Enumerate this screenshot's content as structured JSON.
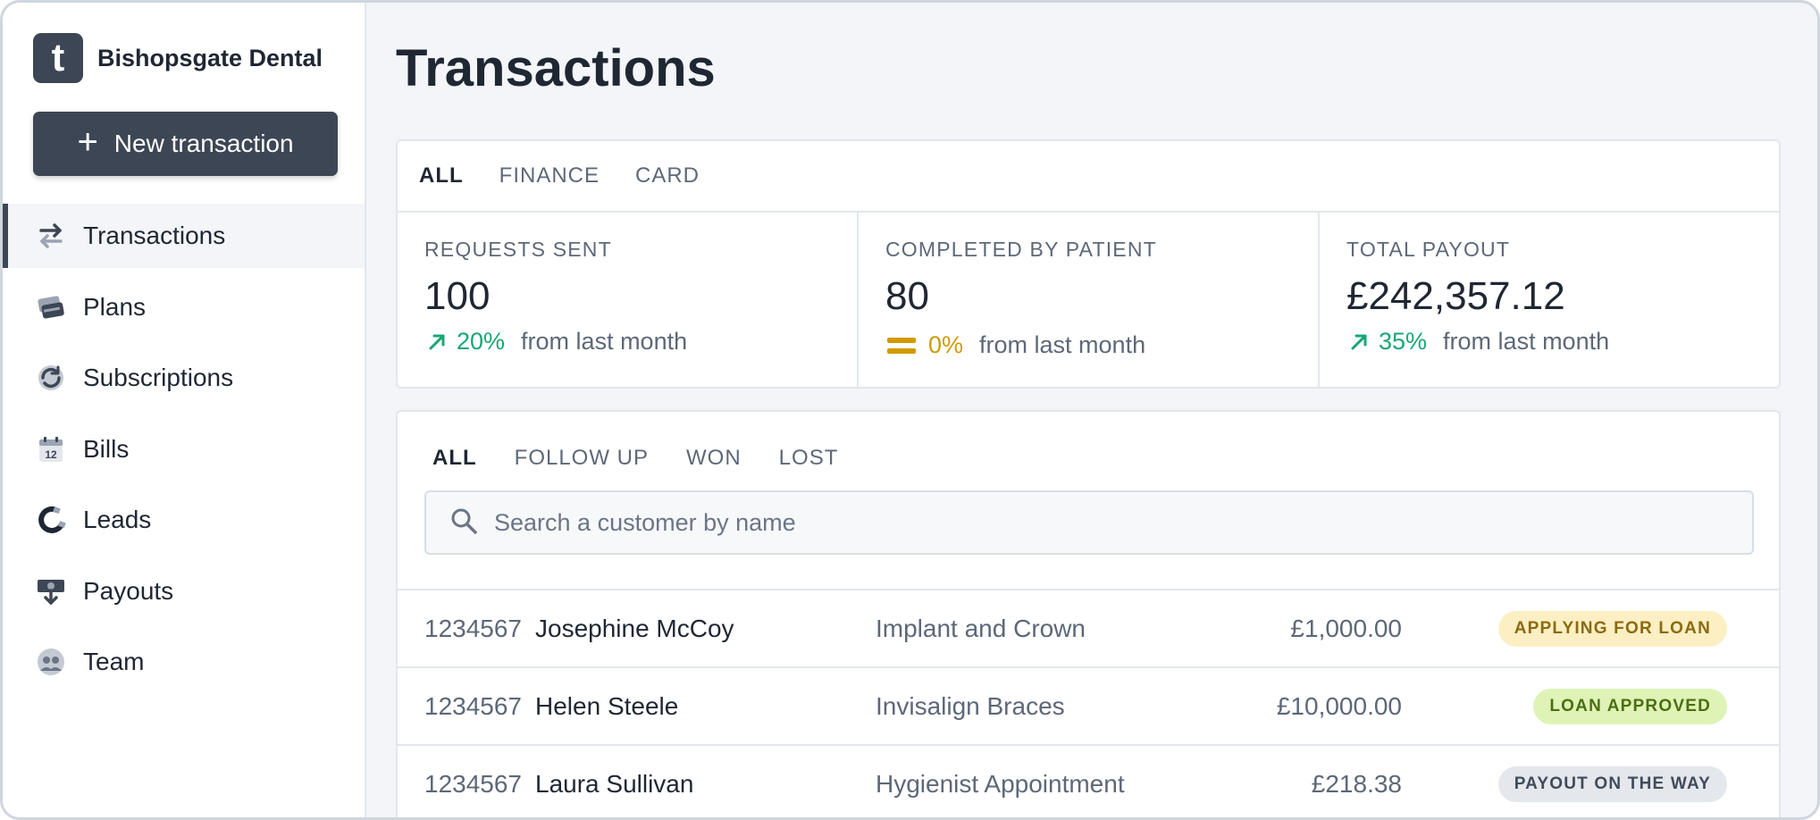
{
  "brand": {
    "logo_letter": "t",
    "name": "Bishopsgate Dental"
  },
  "sidebar": {
    "new_button": {
      "icon": "plus-icon",
      "label": "New transaction"
    },
    "items": [
      {
        "label": "Transactions",
        "icon": "arrows-exchange-icon",
        "active": true
      },
      {
        "label": "Plans",
        "icon": "cards-stack-icon",
        "active": false
      },
      {
        "label": "Subscriptions",
        "icon": "refresh-cycle-icon",
        "active": false
      },
      {
        "label": "Bills",
        "icon": "calendar-icon",
        "active": false
      },
      {
        "label": "Leads",
        "icon": "magnet-icon",
        "active": false
      },
      {
        "label": "Payouts",
        "icon": "money-download-icon",
        "active": false
      },
      {
        "label": "Team",
        "icon": "team-icon",
        "active": false
      }
    ],
    "calendar_day": "12"
  },
  "main": {
    "title": "Transactions",
    "stat_tabs": [
      "ALL",
      "FINANCE",
      "CARD"
    ],
    "stats": [
      {
        "label": "REQUESTS SENT",
        "value": "100",
        "change": "20%",
        "trend": "up",
        "suffix": "from last month"
      },
      {
        "label": "COMPLETED BY PATIENT",
        "value": "80",
        "change": "0%",
        "trend": "flat",
        "suffix": "from last month"
      },
      {
        "label": "TOTAL PAYOUT",
        "value": "£242,357.12",
        "change": "35%",
        "trend": "up",
        "suffix": "from last month"
      }
    ],
    "filters": [
      "ALL",
      "FOLLOW UP",
      "WON",
      "LOST"
    ],
    "search": {
      "placeholder": "Search a customer by name",
      "value": ""
    },
    "rows": [
      {
        "id": "1234567",
        "name": "Josephine McCoy",
        "treatment": "Implant and Crown",
        "amount": "£1,000.00",
        "status": "APPLYING FOR LOAN",
        "status_bg": "#fdefc4",
        "status_fg": "#8a6a10"
      },
      {
        "id": "1234567",
        "name": "Helen Steele",
        "treatment": "Invisalign Braces",
        "amount": "£10,000.00",
        "status": "LOAN APPROVED",
        "status_bg": "#dff3b6",
        "status_fg": "#4c6e12"
      },
      {
        "id": "1234567",
        "name": "Laura Sullivan",
        "treatment": "Hygienist Appointment",
        "amount": "£218.38",
        "status": "PAYOUT ON THE WAY",
        "status_bg": "#e4e7ec",
        "status_fg": "#414b5a"
      }
    ]
  },
  "colors": {
    "primary": "#3d4654",
    "positive": "#18a773",
    "neutral": "#d19a00"
  }
}
